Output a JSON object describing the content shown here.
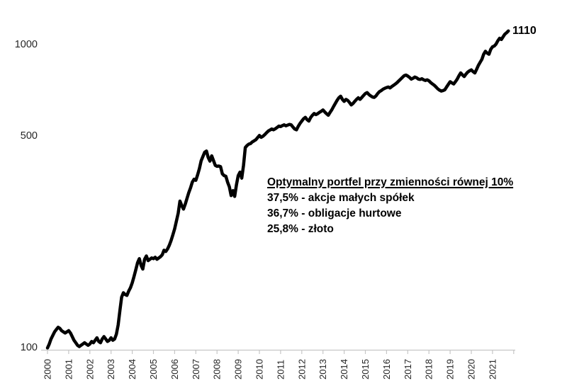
{
  "chart_data": {
    "type": "line",
    "title": "",
    "series_name": "Optymalny portfel przy zmienności równej 10%",
    "x_axis": {
      "label": "",
      "tick_labels": [
        "2000",
        "2001",
        "2002",
        "2003",
        "2004",
        "2005",
        "2006",
        "2007",
        "2008",
        "2009",
        "2010",
        "2011",
        "2012",
        "2013",
        "2014",
        "2015",
        "2016",
        "2017",
        "2018",
        "2019",
        "2020",
        "2021"
      ],
      "range": [
        2000,
        2022
      ]
    },
    "y_axis": {
      "label": "",
      "scale": "log",
      "tick_labels": [
        "100",
        "500",
        "1000"
      ],
      "ticks": [
        100,
        500,
        1000
      ],
      "range": [
        100,
        1200
      ]
    },
    "grid": "off",
    "legend": "none",
    "end_label": "1110",
    "annotation": {
      "title": "Optymalny portfel przy zmienności równej 10%",
      "lines": [
        "37,5% - akcje małych spółek",
        "36,7% - obligacje hurtowe",
        "25,8% - złoto"
      ]
    },
    "series": {
      "start_year": 2000,
      "frequency": "monthly",
      "values": [
        100,
        103,
        107,
        110,
        113,
        115,
        117,
        116,
        114,
        113,
        112,
        113,
        114,
        112,
        109,
        106,
        104,
        102,
        101,
        102,
        103,
        104,
        103,
        102,
        103,
        105,
        104,
        106,
        108,
        105,
        104,
        107,
        109,
        107,
        105,
        106,
        108,
        106,
        107,
        111,
        119,
        133,
        147,
        152,
        150,
        149,
        154,
        158,
        164,
        172,
        181,
        191,
        197,
        187,
        182,
        196,
        201,
        194,
        196,
        198,
        197,
        199,
        196,
        198,
        200,
        203,
        210,
        208,
        212,
        218,
        226,
        236,
        247,
        262,
        278,
        305,
        295,
        287,
        298,
        311,
        325,
        337,
        352,
        360,
        357,
        372,
        390,
        414,
        428,
        442,
        446,
        425,
        413,
        430,
        415,
        400,
        397,
        398,
        396,
        375,
        370,
        368,
        352,
        340,
        318,
        330,
        316,
        345,
        370,
        380,
        363,
        400,
        458,
        465,
        470,
        472,
        478,
        482,
        486,
        494,
        502,
        495,
        499,
        505,
        512,
        519,
        523,
        527,
        524,
        528,
        533,
        539,
        537,
        541,
        544,
        540,
        543,
        546,
        544,
        535,
        527,
        524,
        538,
        550,
        560,
        570,
        576,
        566,
        560,
        575,
        585,
        593,
        588,
        592,
        598,
        603,
        609,
        600,
        592,
        585,
        598,
        610,
        625,
        640,
        655,
        668,
        676,
        660,
        650,
        660,
        655,
        645,
        633,
        640,
        650,
        660,
        668,
        660,
        670,
        680,
        690,
        695,
        685,
        678,
        672,
        670,
        678,
        690,
        700,
        706,
        713,
        718,
        722,
        725,
        720,
        728,
        735,
        742,
        750,
        760,
        770,
        780,
        790,
        794,
        788,
        780,
        770,
        775,
        782,
        778,
        770,
        768,
        772,
        766,
        762,
        766,
        760,
        750,
        742,
        735,
        725,
        715,
        708,
        703,
        706,
        710,
        725,
        740,
        755,
        748,
        742,
        755,
        770,
        790,
        807,
        795,
        785,
        800,
        812,
        820,
        826,
        815,
        807,
        830,
        855,
        875,
        894,
        930,
        951,
        938,
        930,
        965,
        984,
        990,
        1005,
        1030,
        1050,
        1040,
        1062,
        1083,
        1095,
        1110
      ]
    }
  },
  "colors": {
    "line": "#000000",
    "axis": "#c6c6c6",
    "tick": "#c6c6c6",
    "axis_label": "#262626",
    "text": "#000000",
    "background": "#ffffff"
  }
}
